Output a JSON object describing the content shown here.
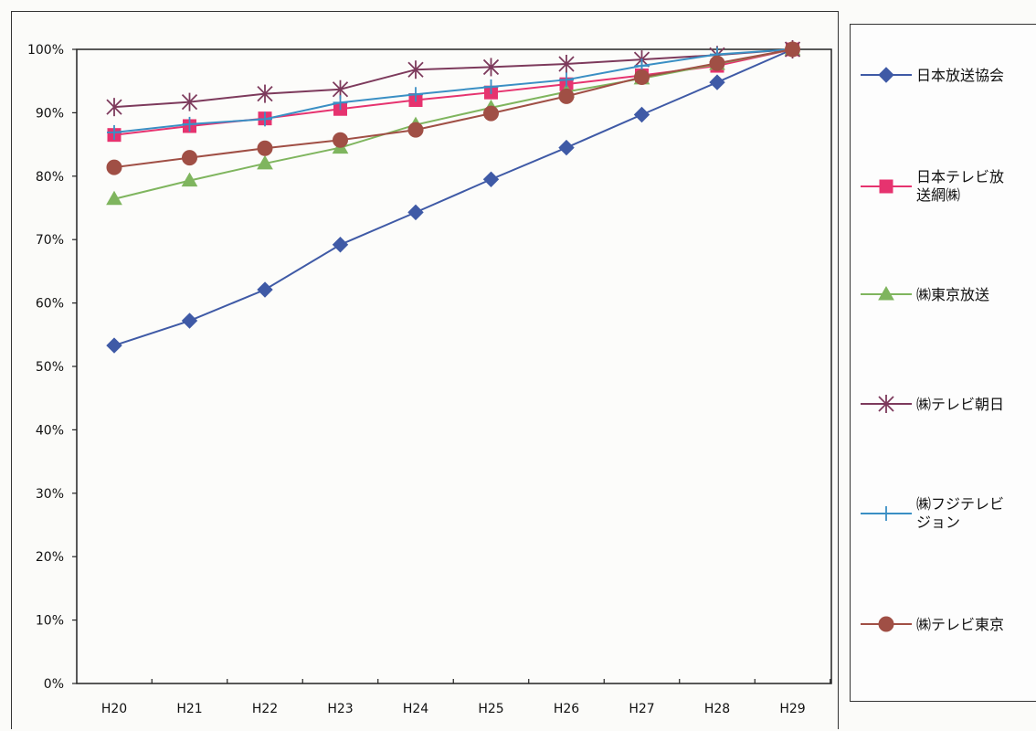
{
  "chart_data": {
    "type": "line",
    "categories": [
      "H20",
      "H21",
      "H22",
      "H23",
      "H24",
      "H25",
      "H26",
      "H27",
      "H28",
      "H29"
    ],
    "y_ticks": [
      "0%",
      "10%",
      "20%",
      "30%",
      "40%",
      "50%",
      "60%",
      "70%",
      "80%",
      "90%",
      "100%"
    ],
    "ylim": [
      0,
      100
    ],
    "grid": false,
    "legend_position": "right",
    "series": [
      {
        "name": "日本放送協会",
        "legend_lines": [
          "日本放送協会"
        ],
        "marker": "diamond",
        "color": "#3f5aa6",
        "values": [
          53.3,
          57.2,
          62.1,
          69.2,
          74.3,
          79.5,
          84.5,
          89.7,
          94.8,
          100
        ]
      },
      {
        "name": "日本テレビ放送網㈱",
        "legend_lines": [
          "日本テレビ放",
          "送網㈱"
        ],
        "marker": "square",
        "color": "#e6336f",
        "values": [
          86.5,
          87.9,
          89.1,
          90.6,
          92.0,
          93.2,
          94.5,
          95.9,
          97.4,
          100
        ]
      },
      {
        "name": "㈱東京放送",
        "legend_lines": [
          "㈱東京放送"
        ],
        "marker": "triangle",
        "color": "#7fb55e",
        "values": [
          76.4,
          79.3,
          82.0,
          84.5,
          88.1,
          90.8,
          93.3,
          95.4,
          97.7,
          100
        ]
      },
      {
        "name": "㈱テレビ朝日",
        "legend_lines": [
          "㈱テレビ朝日"
        ],
        "marker": "asterisk",
        "color": "#7d3a5c",
        "values": [
          90.9,
          91.7,
          93.0,
          93.7,
          96.8,
          97.2,
          97.7,
          98.4,
          99.1,
          100
        ]
      },
      {
        "name": "㈱フジテレビジョン",
        "legend_lines": [
          "㈱フジテレビ",
          "ジョン"
        ],
        "marker": "plus",
        "color": "#3a8fc4",
        "values": [
          86.9,
          88.2,
          89.0,
          91.6,
          92.9,
          94.1,
          95.2,
          97.4,
          99.2,
          100
        ]
      },
      {
        "name": "㈱テレビ東京",
        "legend_lines": [
          "㈱テレビ東京"
        ],
        "marker": "circle",
        "color": "#a04f45",
        "values": [
          81.4,
          82.9,
          84.4,
          85.7,
          87.3,
          89.9,
          92.6,
          95.6,
          97.8,
          100
        ]
      }
    ]
  }
}
